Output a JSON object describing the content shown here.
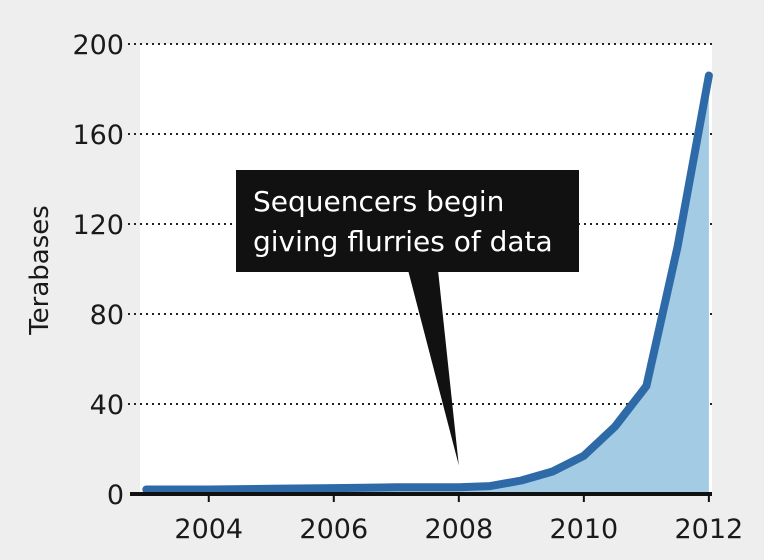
{
  "chart_data": {
    "type": "area",
    "ylabel": "Terabases",
    "x": [
      2003,
      2004,
      2005,
      2006,
      2007,
      2008,
      2008.5,
      2009,
      2009.5,
      2010,
      2010.5,
      2011,
      2011.5,
      2012
    ],
    "series": [
      {
        "values": [
          2,
          2,
          2.3,
          2.6,
          3,
          3,
          3.5,
          6,
          10,
          17,
          30,
          48,
          110,
          186
        ]
      }
    ],
    "xlim": [
      2002.9,
      2012.05
    ],
    "ylim": [
      0,
      200
    ],
    "x_ticks": [
      "2004",
      "2006",
      "2008",
      "2010",
      "2012"
    ],
    "y_ticks": [
      "0",
      "40",
      "80",
      "120",
      "160",
      "200"
    ],
    "grid": "dotted horizontal",
    "annotation": {
      "lines": [
        "Sequencers begin",
        "giving flurries of data"
      ],
      "points_to": {
        "x": 2008,
        "y": 3
      }
    },
    "colors": {
      "line": "#2e6aa8",
      "fill": "#a3cbe3",
      "plot_bg": "#ffffff",
      "callout_bg": "#111111",
      "callout_text": "#ffffff",
      "axis": "#111111"
    }
  }
}
